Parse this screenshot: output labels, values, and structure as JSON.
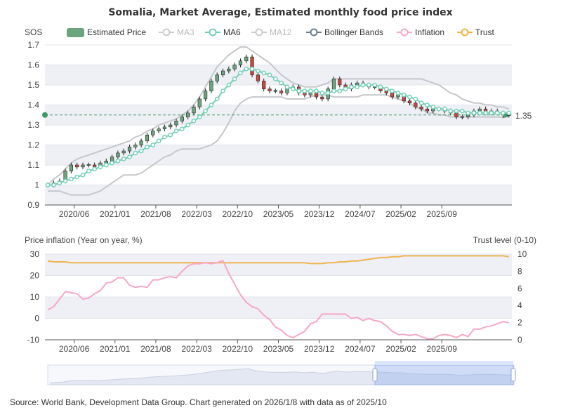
{
  "title": "Somalia, Market Average, Estimated monthly food price index",
  "top_axis_unit": "SOS",
  "legend": [
    {
      "label": "Estimated Price",
      "icon": "rounded-rect-icon",
      "color": "#6aa57d",
      "active": true
    },
    {
      "label": "MA3",
      "icon": "line-circle-icon",
      "color": "#cccccc",
      "active": false
    },
    {
      "label": "MA6",
      "icon": "line-circle-icon",
      "color": "#6fd0b5",
      "active": true
    },
    {
      "label": "MA12",
      "icon": "line-circle-icon",
      "color": "#cccccc",
      "active": false
    },
    {
      "label": "Bollinger Bands",
      "icon": "line-circle-icon",
      "color": "#687d8f",
      "active": true
    },
    {
      "label": "Inflation",
      "icon": "line-circle-icon",
      "color": "#f8a6c8",
      "active": true
    },
    {
      "label": "Trust",
      "icon": "line-circle-icon",
      "color": "#f5b342",
      "active": true
    }
  ],
  "inflation_axis_label": "Price inflation (Year on year, %)",
  "trust_axis_label": "Trust level (0-10)",
  "last_price_label": "1.35",
  "source": "Source: World Bank, Development Data Group. Chart generated on 2026/1/8 with data as of 2025/10",
  "colors": {
    "up": "#6aa57d",
    "down": "#c9473f",
    "ma6": "#6fd0b5",
    "bands": "#c4c7cb",
    "inflation": "#f8a6c8",
    "trust": "#f0b451",
    "lastline": "#3d9a63",
    "band_fill": "#eef0f5"
  },
  "chart_data": [
    {
      "type": "candlestick",
      "title": "Somalia, Market Average, Estimated monthly food price index",
      "ylabel": "SOS",
      "ylim": [
        0.9,
        1.7
      ],
      "yticks": [
        0.9,
        1,
        1.1,
        1.2,
        1.3,
        1.4,
        1.5,
        1.6,
        1.7
      ],
      "x_tick_labels": [
        "2020/06",
        "2021/01",
        "2021/08",
        "2022/03",
        "2022/10",
        "2023/05",
        "2023/12",
        "2024/07",
        "2025/02",
        "2025/09"
      ],
      "x_start": "2020/01",
      "x_end": "2025/10",
      "close": [
        1.0,
        1.01,
        1.02,
        1.07,
        1.1,
        1.09,
        1.1,
        1.1,
        1.09,
        1.11,
        1.12,
        1.14,
        1.16,
        1.17,
        1.19,
        1.2,
        1.22,
        1.25,
        1.27,
        1.28,
        1.29,
        1.3,
        1.32,
        1.34,
        1.36,
        1.39,
        1.43,
        1.47,
        1.52,
        1.55,
        1.57,
        1.58,
        1.6,
        1.62,
        1.64,
        1.55,
        1.52,
        1.48,
        1.47,
        1.47,
        1.46,
        1.48,
        1.49,
        1.46,
        1.45,
        1.47,
        1.44,
        1.43,
        1.48,
        1.53,
        1.5,
        1.48,
        1.5,
        1.51,
        1.5,
        1.49,
        1.49,
        1.47,
        1.46,
        1.44,
        1.45,
        1.42,
        1.41,
        1.39,
        1.38,
        1.37,
        1.38,
        1.38,
        1.37,
        1.36,
        1.34,
        1.34,
        1.35,
        1.37,
        1.38,
        1.36,
        1.37,
        1.36,
        1.35,
        1.35
      ],
      "open": [
        1.0,
        1.0,
        1.01,
        1.02,
        1.07,
        1.1,
        1.09,
        1.1,
        1.1,
        1.09,
        1.11,
        1.12,
        1.14,
        1.16,
        1.17,
        1.19,
        1.2,
        1.22,
        1.25,
        1.27,
        1.28,
        1.29,
        1.3,
        1.32,
        1.34,
        1.36,
        1.39,
        1.43,
        1.47,
        1.52,
        1.55,
        1.57,
        1.58,
        1.6,
        1.62,
        1.64,
        1.55,
        1.52,
        1.48,
        1.47,
        1.47,
        1.46,
        1.48,
        1.49,
        1.46,
        1.45,
        1.47,
        1.44,
        1.43,
        1.48,
        1.53,
        1.5,
        1.48,
        1.5,
        1.51,
        1.5,
        1.49,
        1.49,
        1.47,
        1.46,
        1.44,
        1.45,
        1.42,
        1.41,
        1.39,
        1.38,
        1.37,
        1.38,
        1.38,
        1.37,
        1.36,
        1.34,
        1.34,
        1.35,
        1.37,
        1.38,
        1.36,
        1.37,
        1.36,
        1.35
      ],
      "ma6": [
        1.0,
        1.0,
        1.01,
        1.02,
        1.03,
        1.04,
        1.05,
        1.07,
        1.08,
        1.09,
        1.1,
        1.11,
        1.12,
        1.13,
        1.14,
        1.16,
        1.17,
        1.19,
        1.2,
        1.22,
        1.24,
        1.25,
        1.27,
        1.28,
        1.3,
        1.32,
        1.34,
        1.37,
        1.4,
        1.43,
        1.47,
        1.5,
        1.53,
        1.56,
        1.58,
        1.58,
        1.57,
        1.56,
        1.55,
        1.53,
        1.51,
        1.49,
        1.48,
        1.47,
        1.47,
        1.47,
        1.47,
        1.46,
        1.46,
        1.47,
        1.47,
        1.48,
        1.49,
        1.49,
        1.5,
        1.5,
        1.5,
        1.49,
        1.48,
        1.47,
        1.46,
        1.45,
        1.44,
        1.43,
        1.41,
        1.4,
        1.39,
        1.38,
        1.38,
        1.37,
        1.37,
        1.37,
        1.36,
        1.36,
        1.36,
        1.36,
        1.36,
        1.36,
        1.36,
        1.36
      ],
      "bollinger_upper": [
        1.0,
        1.03,
        1.05,
        1.08,
        1.11,
        1.13,
        1.14,
        1.15,
        1.16,
        1.17,
        1.18,
        1.19,
        1.2,
        1.21,
        1.22,
        1.24,
        1.25,
        1.27,
        1.28,
        1.3,
        1.31,
        1.32,
        1.33,
        1.35,
        1.37,
        1.4,
        1.44,
        1.49,
        1.54,
        1.59,
        1.62,
        1.65,
        1.67,
        1.69,
        1.69,
        1.67,
        1.65,
        1.63,
        1.61,
        1.58,
        1.55,
        1.53,
        1.51,
        1.5,
        1.49,
        1.49,
        1.49,
        1.5,
        1.51,
        1.53,
        1.53,
        1.53,
        1.53,
        1.53,
        1.53,
        1.53,
        1.53,
        1.53,
        1.53,
        1.53,
        1.53,
        1.53,
        1.53,
        1.53,
        1.53,
        1.52,
        1.51,
        1.5,
        1.48,
        1.46,
        1.45,
        1.43,
        1.42,
        1.41,
        1.41,
        1.4,
        1.4,
        1.39,
        1.39,
        1.38
      ],
      "bollinger_lower": [
        0.97,
        0.97,
        0.97,
        0.96,
        0.95,
        0.95,
        0.95,
        0.95,
        0.96,
        0.97,
        0.99,
        1.01,
        1.03,
        1.05,
        1.05,
        1.05,
        1.06,
        1.08,
        1.1,
        1.12,
        1.14,
        1.15,
        1.17,
        1.18,
        1.18,
        1.18,
        1.18,
        1.19,
        1.2,
        1.22,
        1.26,
        1.31,
        1.37,
        1.41,
        1.43,
        1.44,
        1.44,
        1.44,
        1.44,
        1.44,
        1.44,
        1.43,
        1.43,
        1.43,
        1.43,
        1.44,
        1.45,
        1.45,
        1.45,
        1.44,
        1.44,
        1.44,
        1.44,
        1.44,
        1.45,
        1.45,
        1.45,
        1.45,
        1.45,
        1.44,
        1.43,
        1.42,
        1.41,
        1.39,
        1.38,
        1.36,
        1.36,
        1.35,
        1.35,
        1.34,
        1.34,
        1.34,
        1.34,
        1.34,
        1.34,
        1.34,
        1.34,
        1.34,
        1.34,
        1.34
      ],
      "last_value": 1.35
    },
    {
      "type": "line",
      "ylabel": "Price inflation (Year on year, %)",
      "y2label": "Trust level (0-10)",
      "ylim": [
        -10,
        30
      ],
      "yticks": [
        -10,
        0,
        10,
        20,
        30
      ],
      "y2lim": [
        0,
        10
      ],
      "y2ticks": [
        0,
        2,
        4,
        6,
        8,
        10
      ],
      "x_tick_labels": [
        "2020/06",
        "2021/01",
        "2021/08",
        "2022/03",
        "2022/10",
        "2023/05",
        "2023/12",
        "2024/07",
        "2025/02",
        "2025/09"
      ],
      "series": [
        {
          "name": "Inflation",
          "axis": "left",
          "values": [
            4,
            5.5,
            9,
            12.5,
            12,
            11.5,
            9,
            9.5,
            11.5,
            13,
            16.5,
            17,
            19,
            19,
            15.5,
            14.5,
            15,
            14.5,
            18,
            18,
            19,
            19.5,
            19,
            22,
            24.5,
            25.5,
            25.5,
            26,
            25.5,
            26,
            27,
            21,
            16,
            11,
            7.5,
            5.5,
            4.5,
            1.5,
            -0.5,
            -4,
            -5.5,
            -8,
            -9,
            -7.5,
            -6,
            -2.5,
            -1.5,
            2,
            2,
            2,
            2,
            2,
            0,
            0.5,
            -1,
            0,
            -1,
            -1.5,
            -3.5,
            -6,
            -7.5,
            -7.5,
            -8,
            -7.5,
            -8.5,
            -9.5,
            -9.5,
            -8,
            -7.5,
            -8,
            -9,
            -7.5,
            -8.5,
            -5,
            -5,
            -4,
            -3.5,
            -2.5,
            -1.5,
            -2
          ]
        },
        {
          "name": "Trust",
          "axis": "right",
          "values": [
            9.2,
            9.1,
            9.1,
            9.1,
            9.0,
            9.0,
            9.0,
            9.0,
            9.0,
            9.0,
            9.0,
            9.0,
            9.0,
            9.0,
            9.0,
            9.0,
            9.0,
            9.0,
            9.0,
            9.0,
            9.0,
            9.0,
            9.0,
            9.0,
            9.0,
            9.0,
            9.0,
            9.0,
            9.0,
            9.0,
            9.0,
            9.0,
            9.0,
            9.0,
            9.0,
            9.0,
            9.0,
            9.0,
            9.0,
            9.0,
            9.0,
            9.0,
            9.0,
            9.0,
            9.0,
            8.9,
            8.9,
            8.9,
            9.0,
            9.0,
            9.1,
            9.1,
            9.2,
            9.2,
            9.3,
            9.4,
            9.5,
            9.6,
            9.6,
            9.7,
            9.7,
            9.8,
            9.8,
            9.8,
            9.8,
            9.8,
            9.8,
            9.8,
            9.8,
            9.8,
            9.8,
            9.8,
            9.8,
            9.8,
            9.8,
            9.8,
            9.8,
            9.8,
            9.8,
            9.7
          ]
        }
      ]
    }
  ]
}
